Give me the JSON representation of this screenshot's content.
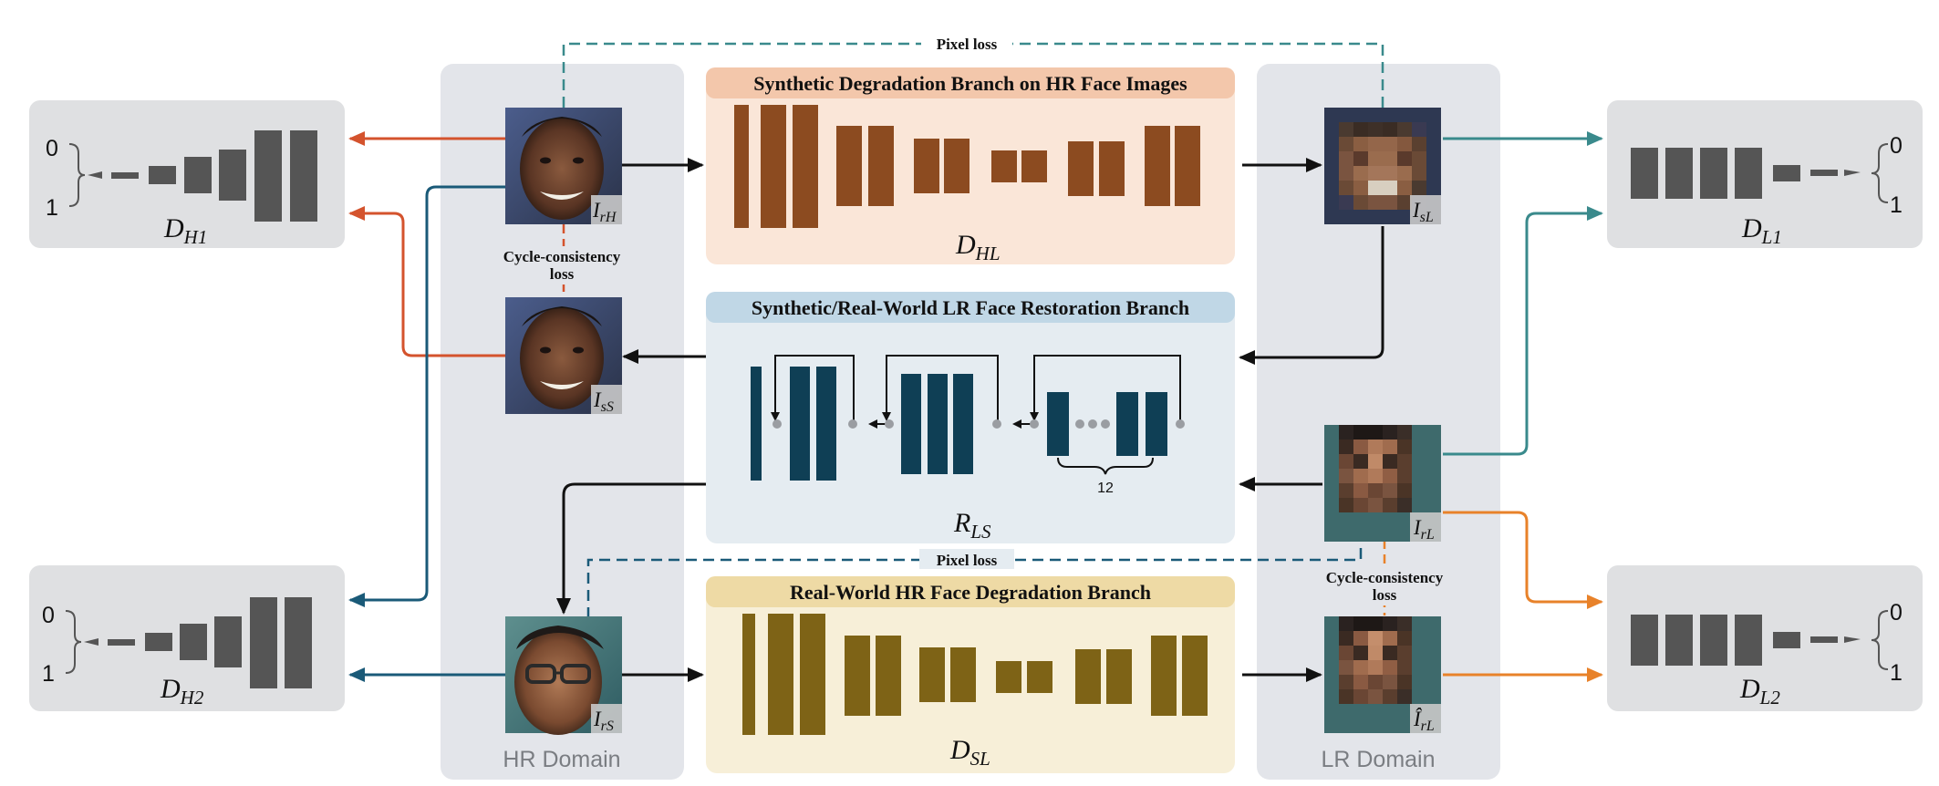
{
  "loss_labels": {
    "pixel_loss_top": "Pixel loss",
    "pixel_loss_bottom": "Pixel loss",
    "cycle_left_line1": "Cycle-consistency",
    "cycle_left_line2": "loss",
    "cycle_right_line1": "Cycle-consistency",
    "cycle_right_line2": "loss"
  },
  "domains": {
    "hr": "HR Domain",
    "lr": "LR Domain"
  },
  "branches": {
    "hl": {
      "title": "Synthetic Degradation Branch on HR Face Images",
      "name_main": "D",
      "name_sub": "HL"
    },
    "ls": {
      "title": "Synthetic/Real-World LR Face Restoration Branch",
      "name_main": "R",
      "name_sub": "LS",
      "repeat_count": "12"
    },
    "sl": {
      "title": "Real-World HR Face Degradation Branch",
      "name_main": "D",
      "name_sub": "SL"
    }
  },
  "discriminators": {
    "dh1": {
      "main": "D",
      "sub": "H1",
      "top": "0",
      "bottom": "1"
    },
    "dh2": {
      "main": "D",
      "sub": "H2",
      "top": "0",
      "bottom": "1"
    },
    "dl1": {
      "main": "D",
      "sub": "L1",
      "top": "0",
      "bottom": "1"
    },
    "dl2": {
      "main": "D",
      "sub": "L2",
      "top": "0",
      "bottom": "1"
    }
  },
  "images": {
    "irH": {
      "main": "I",
      "sub": "rH"
    },
    "isS": {
      "main": "I",
      "sub": "sS"
    },
    "irS": {
      "main": "I",
      "sub": "rS"
    },
    "isL": {
      "main": "I",
      "sub": "sL"
    },
    "irL": {
      "main": "I",
      "sub": "rL"
    },
    "irL_hat": {
      "main": "Î",
      "sub": "rL"
    }
  },
  "colors": {
    "orange_red": "#d4532d",
    "navy_blue": "#1a5a78",
    "teal": "#3a8a8c",
    "orange": "#e8822a",
    "brown_block": "#8c4b20",
    "navy_block": "#0f3f55",
    "olive_block": "#7e6316",
    "disc_block": "#555555"
  }
}
